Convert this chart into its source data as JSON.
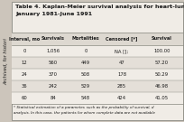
{
  "title_line1": "Table 4. Kaplan-Meier survival analysis for heart-lung",
  "title_line2": "January 1981-June 1991",
  "col_headers": [
    "Interval, mo",
    "Survivals",
    "Mortalities",
    "Censored [*]",
    "Survival"
  ],
  "rows": [
    [
      "0",
      "1,056",
      "0",
      "NA [];",
      "100.00"
    ],
    [
      "12",
      "560",
      "449",
      "47",
      "57.20"
    ],
    [
      "24",
      "370",
      "508",
      "178",
      "50.29"
    ],
    [
      "36",
      "242",
      "529",
      "285",
      "46.98"
    ],
    [
      "60",
      "84",
      "548",
      "424",
      "41.05"
    ]
  ],
  "footnote_line1": "* Statistical estimation of a parameter, such as the probability of survival, d",
  "footnote_line2": "analysis. In this case, the patients for whom complete data are not available",
  "side_label": "Archived, for histori",
  "outer_bg": "#ccc5bb",
  "inner_bg": "#f0ece6",
  "row_even_bg": "#f0ece6",
  "row_odd_bg": "#e4dfd8",
  "header_bg": "#ddd8d0",
  "border_color": "#888880",
  "text_color": "#1a1a1a",
  "fig_width": 2.04,
  "fig_height": 1.35,
  "dpi": 100
}
